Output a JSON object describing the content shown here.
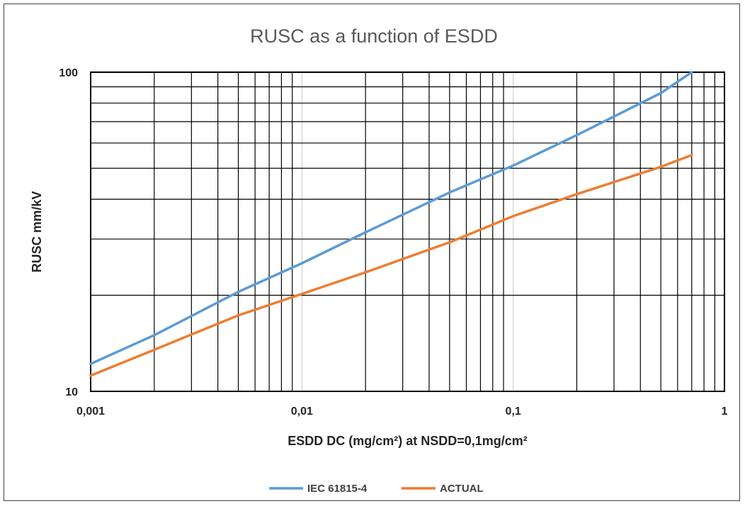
{
  "chart_data": {
    "type": "line",
    "title": "RUSC as a function of ESDD",
    "xlabel": "ESDD DC (mg/cm²) at NSDD=0,1mg/cm²",
    "ylabel": "RUSC mm/kV",
    "xscale": "log",
    "yscale": "log",
    "xlim": [
      0.001,
      1
    ],
    "ylim": [
      10,
      100
    ],
    "x_tick_labels": [
      "0,001",
      "0,01",
      "0,1",
      "1"
    ],
    "y_tick_labels": [
      "10",
      "100"
    ],
    "grid": true,
    "legend_position": "bottom",
    "series": [
      {
        "name": "IEC 61815-4",
        "color": "#5B9BD5",
        "points": [
          [
            0.001,
            12.2
          ],
          [
            0.002,
            15.0
          ],
          [
            0.005,
            20.5
          ],
          [
            0.01,
            25.2
          ],
          [
            0.02,
            31.5
          ],
          [
            0.05,
            42.0
          ],
          [
            0.1,
            51.0
          ],
          [
            0.2,
            63.5
          ],
          [
            0.5,
            86.0
          ],
          [
            0.7,
            100.0
          ]
        ]
      },
      {
        "name": "ACTUAL",
        "color": "#ED7D31",
        "points": [
          [
            0.001,
            11.2
          ],
          [
            0.002,
            13.5
          ],
          [
            0.005,
            17.3
          ],
          [
            0.01,
            20.2
          ],
          [
            0.02,
            23.6
          ],
          [
            0.05,
            29.3
          ],
          [
            0.1,
            35.4
          ],
          [
            0.2,
            41.5
          ],
          [
            0.5,
            50.5
          ],
          [
            0.7,
            55.0
          ]
        ]
      }
    ]
  }
}
